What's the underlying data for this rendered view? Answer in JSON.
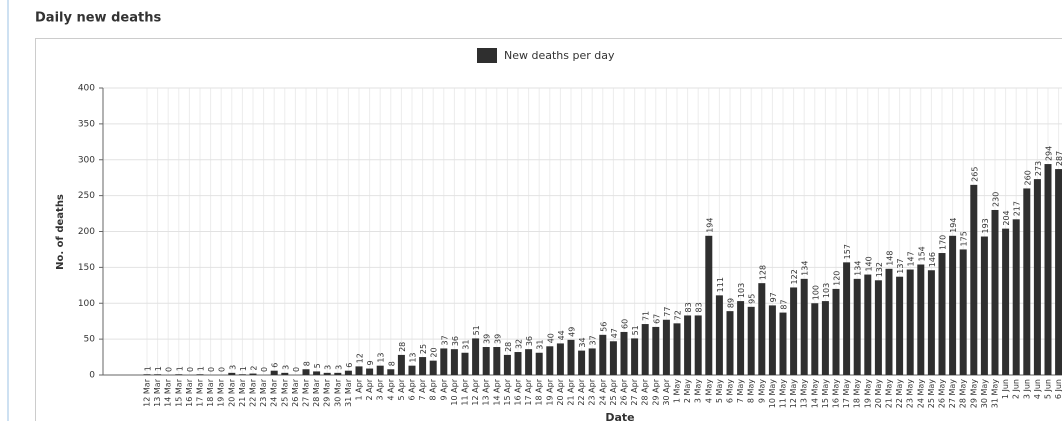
{
  "chart_data": {
    "type": "bar",
    "title": "Daily new deaths",
    "legend_label": "New deaths per day",
    "ylabel": "No. of deaths",
    "xlabel": "Date",
    "color": "#2f2f2f",
    "grid": true,
    "categories": [
      "12 Mar",
      "13 Mar",
      "14 Mar",
      "15 Mar",
      "16 Mar",
      "17 Mar",
      "18 Mar",
      "19 Mar",
      "20 Mar",
      "21 Mar",
      "22 Mar",
      "23 Mar",
      "24 Mar",
      "25 Mar",
      "26 Mar",
      "27 Mar",
      "28 Mar",
      "29 Mar",
      "30 Mar",
      "31 Mar",
      "1 Apr",
      "2 Apr",
      "3 Apr",
      "4 Apr",
      "5 Apr",
      "6 Apr",
      "7 Apr",
      "8 Apr",
      "9 Apr",
      "10 Apr",
      "11 Apr",
      "12 Apr",
      "13 Apr",
      "14 Apr",
      "15 Apr",
      "16 Apr",
      "17 Apr",
      "18 Apr",
      "19 Apr",
      "20 Apr",
      "21 Apr",
      "22 Apr",
      "23 Apr",
      "24 Apr",
      "25 Apr",
      "26 Apr",
      "27 Apr",
      "28 Apr",
      "29 Apr",
      "30 Apr",
      "1 May",
      "2 May",
      "3 May",
      "4 May",
      "5 May",
      "6 May",
      "7 May",
      "8 May",
      "9 May",
      "10 May",
      "11 May",
      "12 May",
      "13 May",
      "14 May",
      "15 May",
      "16 May",
      "17 May",
      "18 May",
      "19 May",
      "20 May",
      "21 May",
      "22 May",
      "23 May",
      "24 May",
      "25 May",
      "26 May",
      "27 May",
      "28 May",
      "29 May",
      "30 May",
      "31 May",
      "1 Jun",
      "2 Jun",
      "3 Jun",
      "4 Jun",
      "5 Jun",
      "6 Jun"
    ],
    "values": [
      1,
      1,
      0,
      1,
      0,
      1,
      0,
      0,
      3,
      1,
      2,
      0,
      6,
      3,
      0,
      8,
      5,
      3,
      3,
      6,
      12,
      9,
      13,
      8,
      28,
      13,
      25,
      20,
      37,
      36,
      31,
      51,
      39,
      39,
      28,
      32,
      36,
      31,
      40,
      44,
      49,
      34,
      37,
      56,
      47,
      60,
      51,
      71,
      67,
      77,
      72,
      83,
      83,
      194,
      111,
      89,
      103,
      95,
      128,
      97,
      87,
      122,
      134,
      100,
      103,
      120,
      157,
      134,
      140,
      132,
      148,
      137,
      147,
      154,
      146,
      170,
      194,
      175,
      265,
      193,
      230,
      204,
      217,
      260,
      273,
      294,
      287
    ],
    "ylim": [
      0,
      400
    ],
    "yticks": [
      0,
      50,
      100,
      150,
      200,
      250,
      300,
      350,
      400
    ]
  }
}
